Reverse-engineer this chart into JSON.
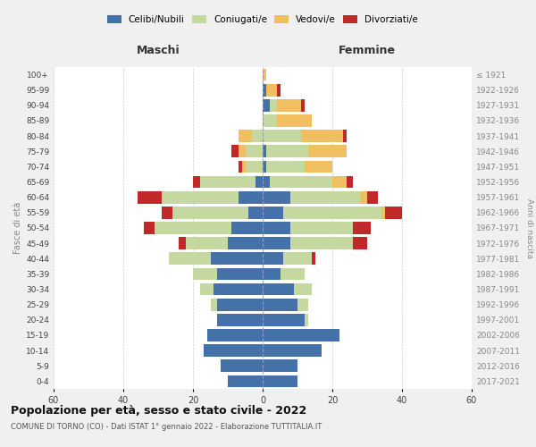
{
  "age_groups": [
    "0-4",
    "5-9",
    "10-14",
    "15-19",
    "20-24",
    "25-29",
    "30-34",
    "35-39",
    "40-44",
    "45-49",
    "50-54",
    "55-59",
    "60-64",
    "65-69",
    "70-74",
    "75-79",
    "80-84",
    "85-89",
    "90-94",
    "95-99",
    "100+"
  ],
  "birth_years": [
    "2017-2021",
    "2012-2016",
    "2007-2011",
    "2002-2006",
    "1997-2001",
    "1992-1996",
    "1987-1991",
    "1982-1986",
    "1977-1981",
    "1972-1976",
    "1967-1971",
    "1962-1966",
    "1957-1961",
    "1952-1956",
    "1947-1951",
    "1942-1946",
    "1937-1941",
    "1932-1936",
    "1927-1931",
    "1922-1926",
    "≤ 1921"
  ],
  "maschi": {
    "celibi": [
      10,
      12,
      17,
      16,
      13,
      13,
      14,
      13,
      15,
      10,
      9,
      4,
      7,
      2,
      0,
      0,
      0,
      0,
      0,
      0,
      0
    ],
    "coniugati": [
      0,
      0,
      0,
      0,
      0,
      2,
      4,
      7,
      12,
      12,
      22,
      22,
      22,
      16,
      5,
      5,
      3,
      0,
      0,
      0,
      0
    ],
    "vedovi": [
      0,
      0,
      0,
      0,
      0,
      0,
      0,
      0,
      0,
      0,
      0,
      0,
      0,
      0,
      1,
      2,
      4,
      0,
      0,
      0,
      0
    ],
    "divorziati": [
      0,
      0,
      0,
      0,
      0,
      0,
      0,
      0,
      0,
      2,
      3,
      3,
      7,
      2,
      1,
      2,
      0,
      0,
      0,
      0,
      0
    ]
  },
  "femmine": {
    "nubili": [
      10,
      10,
      17,
      22,
      12,
      10,
      9,
      5,
      6,
      8,
      8,
      6,
      8,
      2,
      1,
      1,
      0,
      0,
      2,
      1,
      0
    ],
    "coniugate": [
      0,
      0,
      0,
      0,
      1,
      3,
      5,
      7,
      8,
      18,
      18,
      28,
      20,
      18,
      11,
      12,
      11,
      4,
      2,
      0,
      0
    ],
    "vedove": [
      0,
      0,
      0,
      0,
      0,
      0,
      0,
      0,
      0,
      0,
      0,
      1,
      2,
      4,
      8,
      11,
      12,
      10,
      7,
      3,
      1
    ],
    "divorziate": [
      0,
      0,
      0,
      0,
      0,
      0,
      0,
      0,
      1,
      4,
      5,
      5,
      3,
      2,
      0,
      0,
      1,
      0,
      1,
      1,
      0
    ]
  },
  "colors": {
    "celibi": "#4472a8",
    "coniugati": "#c5d8a0",
    "vedovi": "#f0c060",
    "divorziati": "#c0282a"
  },
  "xlim": 60,
  "title": "Popolazione per età, sesso e stato civile - 2022",
  "subtitle": "COMUNE DI TORNO (CO) - Dati ISTAT 1° gennaio 2022 - Elaborazione TUTTITALIA.IT",
  "xlabel_left": "Maschi",
  "xlabel_right": "Femmine",
  "legend_labels": [
    "Celibi/Nubili",
    "Coniugati/e",
    "Vedovi/e",
    "Divorziati/e"
  ],
  "ylabel_left": "Fasce di età",
  "ylabel_right": "Anni di nascita",
  "bg_color": "#f0f0f0",
  "plot_bg_color": "#ffffff",
  "xticks": [
    60,
    40,
    20,
    0,
    20,
    40,
    60
  ]
}
